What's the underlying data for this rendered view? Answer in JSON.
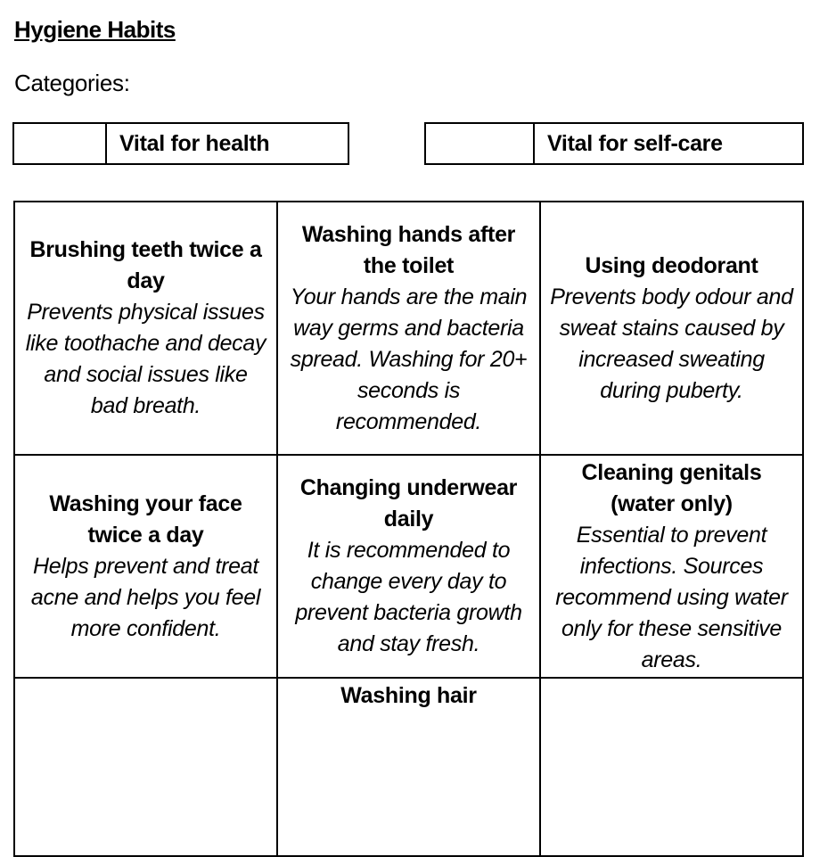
{
  "title": "Hygiene Habits",
  "categories_label": "Categories:",
  "legend": [
    {
      "label": "Vital for health"
    },
    {
      "label": "Vital for self-care"
    }
  ],
  "rows": [
    [
      {
        "heading": "Brushing teeth twice a day",
        "desc": "Prevents physical issues like toothache and decay and social issues like bad breath."
      },
      {
        "heading": "Washing hands after the toilet",
        "desc": "Your hands are the main way germs and bacteria spread. Washing for 20+ seconds is recommended."
      },
      {
        "heading": "Using deodorant",
        "desc": "Prevents body odour and sweat stains caused by increased sweating during puberty."
      }
    ],
    [
      {
        "heading": "Washing your face twice a day",
        "desc": "Helps prevent and treat acne and helps you feel more confident."
      },
      {
        "heading": "Changing underwear daily",
        "desc": "It is recommended to change every day to prevent bacteria growth and stay fresh."
      },
      {
        "heading": "Cleaning genitals (water only)",
        "desc": "Essential to prevent infections. Sources recommend using water only for these sensitive areas."
      }
    ],
    [
      {
        "heading": "",
        "desc": ""
      },
      {
        "heading": "Washing hair",
        "desc": ""
      },
      {
        "heading": "",
        "desc": ""
      }
    ]
  ]
}
